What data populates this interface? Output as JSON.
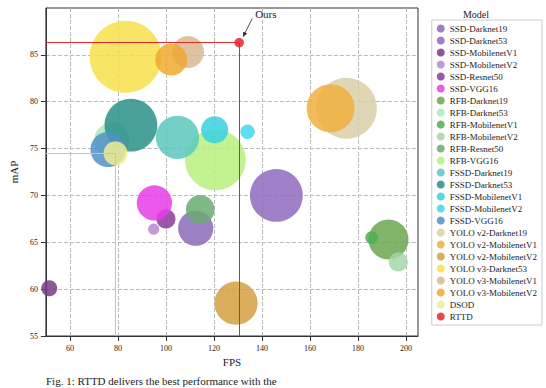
{
  "chart_data": {
    "type": "scatter",
    "x_label": "FPS",
    "y_label": "mAP",
    "xlim": [
      50,
      205
    ],
    "xticks": [
      60,
      80,
      100,
      120,
      140,
      160,
      180,
      200
    ],
    "ylim": [
      55,
      90
    ],
    "yticks": [
      55,
      60,
      65,
      70,
      75,
      80,
      85
    ],
    "grid": true,
    "legend": "right",
    "legend_title": "Model",
    "marker": "circle",
    "series": [
      {
        "name": "SSD-Darknet19",
        "color": "#8a6ab8",
        "x": [
          112.4
        ],
        "values": [
          66.5
        ],
        "sizes": [
          22
        ]
      },
      {
        "name": "SSD-Darknet53",
        "color": "#8f6bbf",
        "x": [
          146.0
        ],
        "values": [
          70.0
        ],
        "sizes": [
          33
        ]
      },
      {
        "name": "SSD-MobilenetV1",
        "color": "#7a3a8a",
        "x": [
          51.4
        ],
        "values": [
          60.1
        ],
        "sizes": [
          10
        ]
      },
      {
        "name": "SSD-MobilenetV2",
        "color": "#b888d0",
        "x": [
          94.9
        ],
        "values": [
          66.4
        ],
        "sizes": [
          7
        ]
      },
      {
        "name": "SSD-Resnet50",
        "color": "#8c3a9a",
        "x": [
          100.0
        ],
        "values": [
          67.5
        ],
        "sizes": [
          12
        ]
      },
      {
        "name": "SSD-VGG16",
        "color": "#e83ce8",
        "x": [
          95.2
        ],
        "values": [
          69.2
        ],
        "sizes": [
          22
        ]
      },
      {
        "name": "RFB-Darknet19",
        "color": "#6aa84f",
        "x": [
          192.7
        ],
        "values": [
          65.3
        ],
        "sizes": [
          25
        ]
      },
      {
        "name": "RFB-Darknet53",
        "color": "#a8ecb8",
        "x": [
          77.5
        ],
        "values": [
          75.9
        ],
        "sizes": [
          22
        ]
      },
      {
        "name": "RFB-MobilenetV1",
        "color": "#4caf50",
        "x": [
          185.7
        ],
        "values": [
          65.5
        ],
        "sizes": [
          8
        ]
      },
      {
        "name": "RFB-MobilenetV2",
        "color": "#a5d6a7",
        "x": [
          196.8
        ],
        "values": [
          62.9
        ],
        "sizes": [
          12
        ]
      },
      {
        "name": "RFB-Resnet50",
        "color": "#6aaa72",
        "x": [
          114.3
        ],
        "values": [
          68.5
        ],
        "sizes": [
          18
        ]
      },
      {
        "name": "RFB-VGG16",
        "color": "#b8f080",
        "x": [
          120.6
        ],
        "values": [
          73.8
        ],
        "sizes": [
          38
        ]
      },
      {
        "name": "FSSD-Darknet19",
        "color": "#5cc8bc",
        "x": [
          104.8
        ],
        "values": [
          76.2
        ],
        "sizes": [
          27
        ]
      },
      {
        "name": "FSSD-Darknet53",
        "color": "#2a8f88",
        "x": [
          85.4
        ],
        "values": [
          77.5
        ],
        "sizes": [
          33
        ]
      },
      {
        "name": "FSSD-MobilenetV1",
        "color": "#3ad0e0",
        "x": [
          120.3
        ],
        "values": [
          77.0
        ],
        "sizes": [
          17
        ]
      },
      {
        "name": "FSSD-MobilenetV2",
        "color": "#40d8f0",
        "x": [
          134.0
        ],
        "values": [
          76.8
        ],
        "sizes": [
          9
        ]
      },
      {
        "name": "FSSD-VGG16",
        "color": "#5090c8",
        "x": [
          75.9
        ],
        "values": [
          74.9
        ],
        "sizes": [
          22
        ]
      },
      {
        "name": "YOLO v2-Darknet19",
        "color": "#d8cfa8",
        "x": [
          175.2
        ],
        "values": [
          79.3
        ],
        "sizes": [
          38
        ]
      },
      {
        "name": "YOLO v2-MobilenetV1",
        "color": "#f0b040",
        "x": [
          168.6
        ],
        "values": [
          79.3
        ],
        "sizes": [
          30
        ]
      },
      {
        "name": "YOLO v2-MobilenetV2",
        "color": "#d4a040",
        "x": [
          129.2
        ],
        "values": [
          58.5
        ],
        "sizes": [
          27
        ]
      },
      {
        "name": "YOLO v3-Darknet53",
        "color": "#f7e04a",
        "x": [
          83.2
        ],
        "values": [
          84.8
        ],
        "sizes": [
          45
        ]
      },
      {
        "name": "YOLO v3-MobilenetV1",
        "color": "#d8b890",
        "x": [
          109.2
        ],
        "values": [
          85.3
        ],
        "sizes": [
          20
        ]
      },
      {
        "name": "YOLO v3-MobilenetV2",
        "color": "#f0a830",
        "x": [
          102.2
        ],
        "values": [
          84.5
        ],
        "sizes": [
          20
        ]
      },
      {
        "name": "DSOD",
        "color": "#f0ec90",
        "x": [
          79.0
        ],
        "values": [
          74.5
        ],
        "sizes": [
          15
        ]
      },
      {
        "name": "RTTD",
        "color": "#e8262a",
        "x": [
          130.5
        ],
        "values": [
          86.3
        ],
        "sizes": [
          6
        ]
      }
    ],
    "reference_lines": [
      {
        "x": 130.5,
        "y": 86.3,
        "color": "#e8262a"
      },
      {
        "x": 79.0,
        "y": 74.5,
        "color": "#f4c542"
      }
    ],
    "annotations": [
      {
        "text": "Ours",
        "x": 130.5,
        "y": 86.3
      }
    ],
    "caption": "Fig. 1: RTTD delivers the best performance with the"
  }
}
